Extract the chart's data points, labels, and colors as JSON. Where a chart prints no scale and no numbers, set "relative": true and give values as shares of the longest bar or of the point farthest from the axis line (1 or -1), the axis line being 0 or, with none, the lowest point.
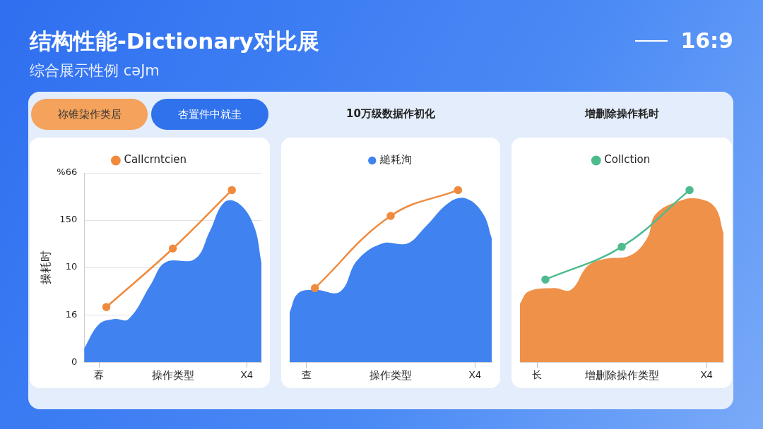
{
  "chart_data": [
    {
      "type": "other",
      "title": "结构性能-Dictionary对比展",
      "subtitle": "综合展示性例 cəJm",
      "annotations": [
        "16:9",
        "祢锥柒作类居",
        "杏置件中就圭"
      ]
    },
    {
      "type": "line",
      "relative": true,
      "ylabel": "操耗时",
      "xlabel": "操作类型",
      "annotations": [
        "0",
        "16",
        "10",
        "150",
        "%66"
      ],
      "grid": "y",
      "legend": "top",
      "categories": [
        null,
        null,
        "萶",
        null,
        null,
        null,
        null,
        null,
        null,
        null,
        null,
        null,
        null,
        null,
        null,
        null,
        null,
        null,
        null,
        null,
        null,
        null,
        "X4",
        null,
        null
      ],
      "series": [
        {
          "type": "area",
          "color": "#3f82f0",
          "values": [
            0.08,
            null,
            0.22,
            null,
            0.25,
            null,
            0.25,
            null,
            null,
            0.45,
            null,
            0.58,
            null,
            null,
            null,
            0.6,
            null,
            0.76,
            null,
            0.93,
            null,
            0.92,
            null,
            0.79,
            0.58
          ]
        },
        {
          "type": "line",
          "name": "Callcrntcien",
          "color": "#f08a3c",
          "marker": "circle",
          "values": [
            null,
            null,
            null,
            0.32,
            null,
            null,
            null,
            null,
            null,
            null,
            null,
            null,
            0.66,
            null,
            null,
            null,
            null,
            null,
            null,
            null,
            1,
            null,
            null,
            null,
            null
          ]
        }
      ]
    },
    {
      "type": "line",
      "relative": true,
      "title": "10万级数据作初化",
      "xlabel": "操作类型",
      "tick_labels": "x",
      "legend": "top",
      "categories": [
        null,
        null,
        "查",
        null,
        null,
        null,
        null,
        null,
        null,
        null,
        null,
        null,
        null,
        null,
        null,
        null,
        null,
        null,
        null,
        null,
        null,
        null,
        "X4",
        null,
        null
      ],
      "series": [
        {
          "type": "area",
          "name": "縋耗洵",
          "color": "#3f82f0",
          "values": [
            0.29,
            0.4,
            null,
            0.42,
            null,
            null,
            0.41,
            null,
            0.59,
            null,
            null,
            0.69,
            null,
            null,
            0.69,
            null,
            0.78,
            null,
            null,
            0.93,
            null,
            0.95,
            null,
            0.86,
            0.72
          ]
        },
        {
          "type": "line",
          "color": "#f08a3c",
          "marker": "circle",
          "values": [
            null,
            null,
            null,
            0.43,
            null,
            null,
            null,
            null,
            null,
            null,
            null,
            null,
            0.85,
            null,
            null,
            null,
            null,
            null,
            null,
            null,
            1,
            null,
            null,
            null,
            null
          ]
        }
      ]
    },
    {
      "type": "line",
      "relative": true,
      "title": "增删除操作耗时",
      "xlabel": "增删除操作类型",
      "tick_labels": "x",
      "legend": "top",
      "categories": [
        null,
        null,
        "长",
        null,
        null,
        null,
        null,
        null,
        null,
        null,
        null,
        null,
        null,
        null,
        null,
        null,
        null,
        null,
        null,
        null,
        null,
        null,
        "X4",
        null,
        null
      ],
      "series": [
        {
          "type": "area",
          "color": "#f0914a",
          "values": [
            0.34,
            0.41,
            null,
            null,
            0.43,
            null,
            0.42,
            null,
            0.56,
            null,
            0.6,
            null,
            null,
            0.62,
            null,
            0.72,
            0.86,
            null,
            null,
            0.94,
            null,
            0.95,
            null,
            0.9,
            0.75
          ]
        },
        {
          "type": "line",
          "name": "Collction",
          "color": "#4dbb8e",
          "marker": "circle",
          "values": [
            null,
            null,
            null,
            0.48,
            null,
            null,
            null,
            null,
            null,
            null,
            null,
            null,
            0.67,
            null,
            null,
            null,
            null,
            null,
            null,
            null,
            1,
            null,
            null,
            null,
            null
          ]
        }
      ]
    }
  ]
}
